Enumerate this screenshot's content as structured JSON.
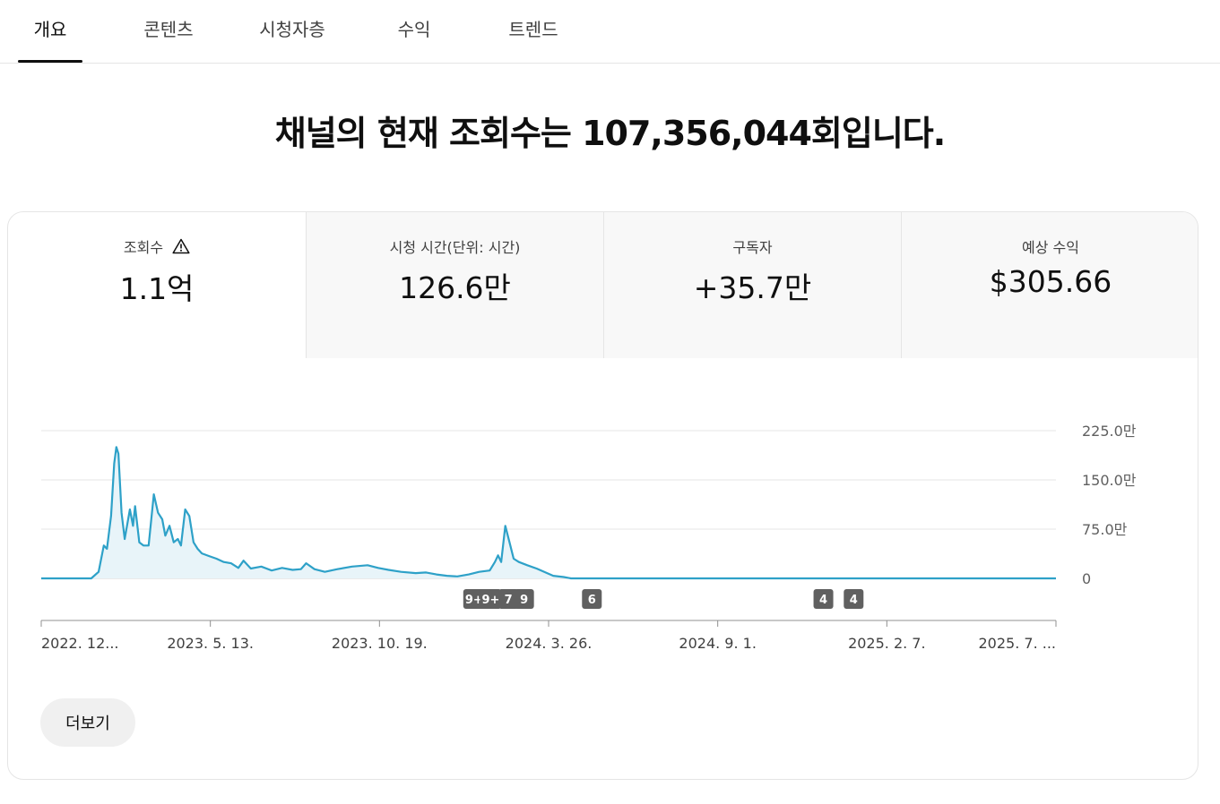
{
  "tabs": [
    {
      "label": "개요",
      "active": true
    },
    {
      "label": "콘텐츠",
      "active": false
    },
    {
      "label": "시청자층",
      "active": false
    },
    {
      "label": "수익",
      "active": false
    },
    {
      "label": "트렌드",
      "active": false
    }
  ],
  "headline": "채널의 현재 조회수는 107,356,044회입니다.",
  "metrics": [
    {
      "label": "조회수",
      "value": "1.1억",
      "selected": true,
      "icon": "warning-icon"
    },
    {
      "label": "시청 시간(단위: 시간)",
      "value": "126.6만",
      "selected": false
    },
    {
      "label": "구독자",
      "value": "+35.7만",
      "selected": false
    },
    {
      "label": "예상 수익",
      "value": "$305.66",
      "selected": false
    }
  ],
  "colors": {
    "line": "#2ea1c8",
    "area": "#e8f4f9",
    "marker": "#606060",
    "grid": "#e5e5e5"
  },
  "chart_data": {
    "type": "area",
    "y_ticks": [
      "225.0만",
      "150.0만",
      "75.0만",
      "0"
    ],
    "y_tick_values": [
      2250000,
      1500000,
      750000,
      0
    ],
    "ylim": [
      0,
      2250000
    ],
    "x_tick_labels": [
      "2022. 12...",
      "2023. 5. 13.",
      "2023. 10. 19.",
      "2024. 3. 26.",
      "2024. 9. 1.",
      "2025. 2. 7.",
      "2025. 7. ..."
    ],
    "x_start": "2022-11-21",
    "x_end": "2025-07-21",
    "series": [
      {
        "points": [
          [
            "2022-11-21",
            0
          ],
          [
            "2023-01-08",
            0
          ],
          [
            "2023-01-15",
            100000
          ],
          [
            "2023-01-20",
            500000
          ],
          [
            "2023-01-23",
            450000
          ],
          [
            "2023-01-27",
            950000
          ],
          [
            "2023-01-30",
            1750000
          ],
          [
            "2023-02-01",
            2000000
          ],
          [
            "2023-02-03",
            1900000
          ],
          [
            "2023-02-06",
            1000000
          ],
          [
            "2023-02-09",
            600000
          ],
          [
            "2023-02-14",
            1050000
          ],
          [
            "2023-02-17",
            800000
          ],
          [
            "2023-02-19",
            1100000
          ],
          [
            "2023-02-23",
            550000
          ],
          [
            "2023-02-27",
            500000
          ],
          [
            "2023-03-04",
            500000
          ],
          [
            "2023-03-09",
            1280000
          ],
          [
            "2023-03-13",
            1000000
          ],
          [
            "2023-03-17",
            900000
          ],
          [
            "2023-03-20",
            650000
          ],
          [
            "2023-03-24",
            800000
          ],
          [
            "2023-03-28",
            550000
          ],
          [
            "2023-04-01",
            600000
          ],
          [
            "2023-04-04",
            500000
          ],
          [
            "2023-04-08",
            1050000
          ],
          [
            "2023-04-12",
            950000
          ],
          [
            "2023-04-16",
            550000
          ],
          [
            "2023-04-20",
            450000
          ],
          [
            "2023-04-24",
            380000
          ],
          [
            "2023-05-01",
            340000
          ],
          [
            "2023-05-08",
            300000
          ],
          [
            "2023-05-15",
            250000
          ],
          [
            "2023-05-22",
            230000
          ],
          [
            "2023-05-29",
            160000
          ],
          [
            "2023-06-03",
            270000
          ],
          [
            "2023-06-10",
            150000
          ],
          [
            "2023-06-20",
            180000
          ],
          [
            "2023-06-30",
            120000
          ],
          [
            "2023-07-10",
            160000
          ],
          [
            "2023-07-20",
            130000
          ],
          [
            "2023-07-28",
            140000
          ],
          [
            "2023-08-02",
            230000
          ],
          [
            "2023-08-10",
            140000
          ],
          [
            "2023-08-20",
            100000
          ],
          [
            "2023-09-01",
            140000
          ],
          [
            "2023-09-15",
            180000
          ],
          [
            "2023-09-30",
            200000
          ],
          [
            "2023-10-10",
            160000
          ],
          [
            "2023-10-20",
            130000
          ],
          [
            "2023-11-01",
            100000
          ],
          [
            "2023-11-15",
            80000
          ],
          [
            "2023-11-25",
            90000
          ],
          [
            "2023-12-05",
            60000
          ],
          [
            "2023-12-15",
            40000
          ],
          [
            "2023-12-25",
            30000
          ],
          [
            "2024-01-05",
            60000
          ],
          [
            "2024-01-15",
            100000
          ],
          [
            "2024-01-25",
            120000
          ],
          [
            "2024-01-30",
            250000
          ],
          [
            "2024-02-02",
            350000
          ],
          [
            "2024-02-05",
            250000
          ],
          [
            "2024-02-09",
            800000
          ],
          [
            "2024-02-13",
            550000
          ],
          [
            "2024-02-17",
            300000
          ],
          [
            "2024-02-22",
            250000
          ],
          [
            "2024-03-01",
            200000
          ],
          [
            "2024-03-10",
            150000
          ],
          [
            "2024-03-20",
            80000
          ],
          [
            "2024-03-26",
            40000
          ],
          [
            "2024-04-05",
            20000
          ],
          [
            "2024-04-12",
            0
          ],
          [
            "2025-07-21",
            0
          ]
        ]
      }
    ],
    "markers": [
      {
        "label": "9+",
        "date": "2024-01-10"
      },
      {
        "label": "9+",
        "date": "2024-01-26"
      },
      {
        "label": "7",
        "date": "2024-02-12"
      },
      {
        "label": "9",
        "date": "2024-02-27"
      },
      {
        "label": "6",
        "date": "2024-05-02"
      },
      {
        "label": "4",
        "date": "2024-12-10"
      },
      {
        "label": "4",
        "date": "2025-01-08"
      }
    ]
  },
  "more_button": {
    "label": "더보기"
  }
}
